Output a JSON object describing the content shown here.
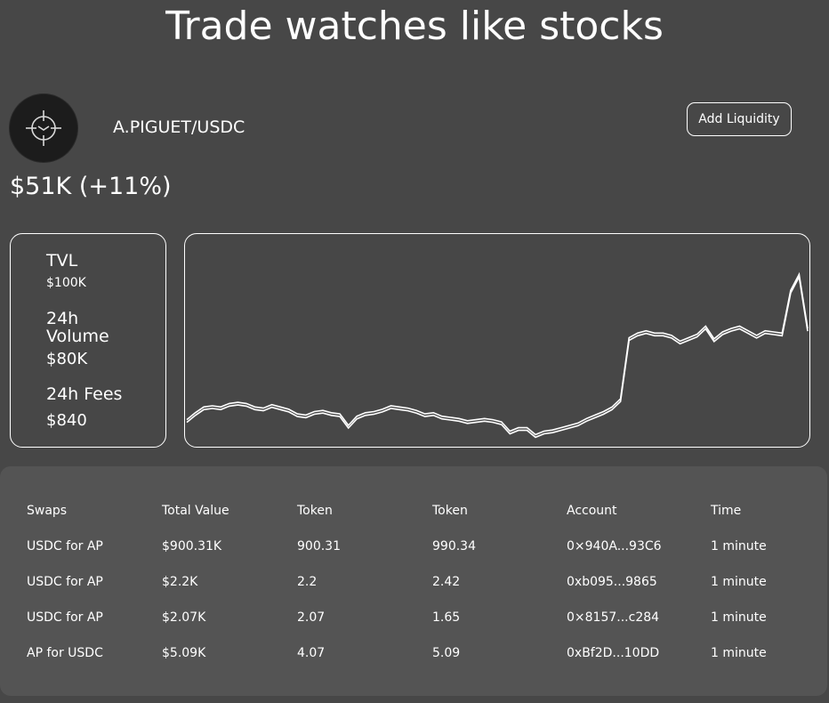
{
  "headline": "Trade watches like stocks",
  "pool": {
    "pair": "A.PIGUET/USDC",
    "price": "$51K (+11%)",
    "add_liquidity_label": "Add Liquidity",
    "logo_icon": "target-crosshair-icon"
  },
  "stats": {
    "tvl_label": "TVL",
    "tvl_value": "$100K",
    "volume_label_line1": "24h",
    "volume_label_line2": "Volume",
    "volume_value": "$80K",
    "fees_label": "24h Fees",
    "fees_value": "$840"
  },
  "chart_data": {
    "type": "line",
    "series": [
      {
        "values": [
          44.5,
          45.1,
          45.6,
          45.7,
          45.6,
          45.9,
          46.0,
          45.9,
          45.6,
          45.5,
          45.8,
          45.6,
          45.4,
          45.0,
          44.9,
          45.2,
          45.3,
          45.1,
          45.0,
          44.0,
          44.8,
          45.1,
          45.2,
          45.4,
          45.7,
          45.6,
          45.5,
          45.3,
          45.0,
          45.1,
          44.8,
          44.7,
          44.6,
          44.4,
          44.5,
          44.6,
          44.5,
          44.3,
          43.5,
          43.8,
          43.8,
          43.2,
          43.5,
          43.6,
          43.8,
          44.0,
          44.2,
          44.6,
          44.9,
          45.2,
          45.6,
          46.3,
          51.6,
          52.0,
          52.2,
          52.0,
          52.0,
          51.8,
          51.3,
          51.6,
          51.9,
          52.6,
          51.5,
          52.1,
          52.4,
          52.6,
          52.2,
          51.8,
          52.2,
          52.1,
          52.0,
          55.7,
          57.1,
          52.4
        ]
      }
    ]
  },
  "swaps": {
    "headers": [
      "Swaps",
      "Total Value",
      "Token",
      "Token",
      "Account",
      "Time"
    ],
    "rows": [
      [
        "USDC for AP",
        "$900.31K",
        "900.31",
        "990.34",
        "0×940A...93C6",
        "1 minute"
      ],
      [
        "USDC for AP",
        "$2.2K",
        "2.2",
        "2.42",
        "0xb095...9865",
        "1 minute"
      ],
      [
        "USDC for AP",
        "$2.07K",
        "2.07",
        "1.65",
        "0×8157...c284",
        "1 minute"
      ],
      [
        "AP for USDC",
        "$5.09K",
        "4.07",
        "5.09",
        "0xBf2D...10DD",
        "1 minute"
      ]
    ]
  }
}
